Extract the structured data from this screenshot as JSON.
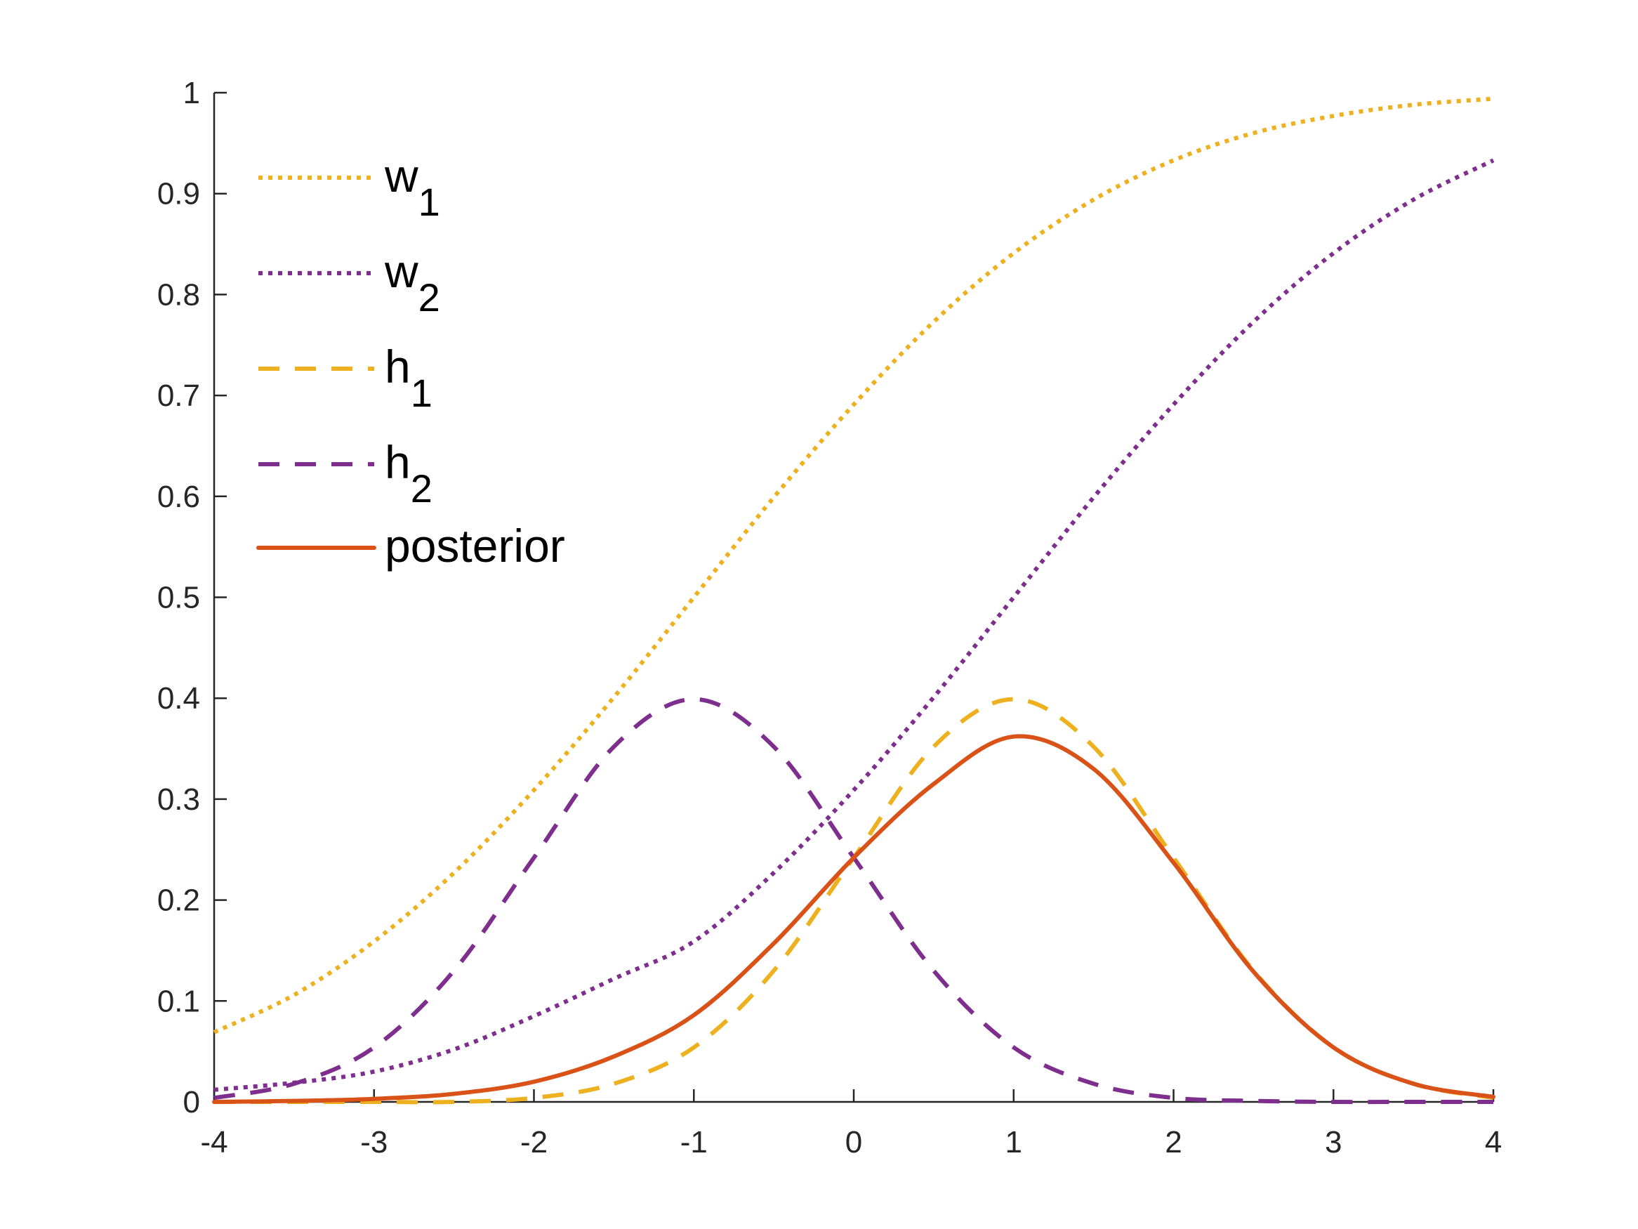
{
  "chart_data": {
    "type": "line",
    "title": "",
    "xlabel": "",
    "ylabel": "",
    "xlim": [
      -4,
      4
    ],
    "ylim": [
      0,
      1
    ],
    "xticks": [
      -4,
      -3,
      -2,
      -1,
      0,
      1,
      2,
      3,
      4
    ],
    "yticks": [
      0,
      0.1,
      0.2,
      0.3,
      0.4,
      0.5,
      0.6,
      0.7,
      0.8,
      0.9,
      1
    ],
    "x_tick_labels": [
      "-4",
      "-3",
      "-2",
      "-1",
      "0",
      "1",
      "2",
      "3",
      "4"
    ],
    "y_tick_labels": [
      "0",
      "0.1",
      "0.2",
      "0.3",
      "0.4",
      "0.5",
      "0.6",
      "0.7",
      "0.8",
      "0.9",
      "1"
    ],
    "grid": false,
    "legend_position": "top-left",
    "x": [
      -4,
      -3.5,
      -3,
      -2.5,
      -2,
      -1.5,
      -1,
      -0.5,
      0,
      0.5,
      1,
      1.5,
      2,
      2.5,
      3,
      3.5,
      4
    ],
    "series": [
      {
        "name": "w",
        "subscript": "1",
        "style": "dotted",
        "color": "#EDB120",
        "values": [
          0.069,
          0.106,
          0.159,
          0.227,
          0.309,
          0.401,
          0.5,
          0.599,
          0.691,
          0.773,
          0.841,
          0.894,
          0.933,
          0.96,
          0.977,
          0.988,
          0.994
        ]
      },
      {
        "name": "w",
        "subscript": "2",
        "style": "dotted",
        "color": "#7E2F8E",
        "values": [
          0.012,
          0.019,
          0.03,
          0.052,
          0.085,
          0.122,
          0.159,
          0.227,
          0.309,
          0.401,
          0.5,
          0.599,
          0.691,
          0.773,
          0.841,
          0.894,
          0.933
        ]
      },
      {
        "name": "h",
        "subscript": "1",
        "style": "dashed",
        "color": "#EDB120",
        "values": [
          0.0,
          0.0,
          0.0,
          0.0,
          0.004,
          0.018,
          0.054,
          0.13,
          0.242,
          0.352,
          0.399,
          0.352,
          0.242,
          0.13,
          0.054,
          0.018,
          0.004
        ]
      },
      {
        "name": "h",
        "subscript": "2",
        "style": "dashed",
        "color": "#7E2F8E",
        "values": [
          0.004,
          0.018,
          0.054,
          0.13,
          0.242,
          0.352,
          0.399,
          0.352,
          0.242,
          0.13,
          0.054,
          0.018,
          0.004,
          0.001,
          0.0,
          0.0,
          0.0
        ]
      },
      {
        "name": "posterior",
        "subscript": "",
        "style": "solid",
        "color": "#D95319",
        "values": [
          0.0,
          0.001,
          0.003,
          0.008,
          0.02,
          0.045,
          0.086,
          0.157,
          0.242,
          0.315,
          0.362,
          0.33,
          0.237,
          0.129,
          0.054,
          0.018,
          0.005
        ]
      }
    ]
  }
}
